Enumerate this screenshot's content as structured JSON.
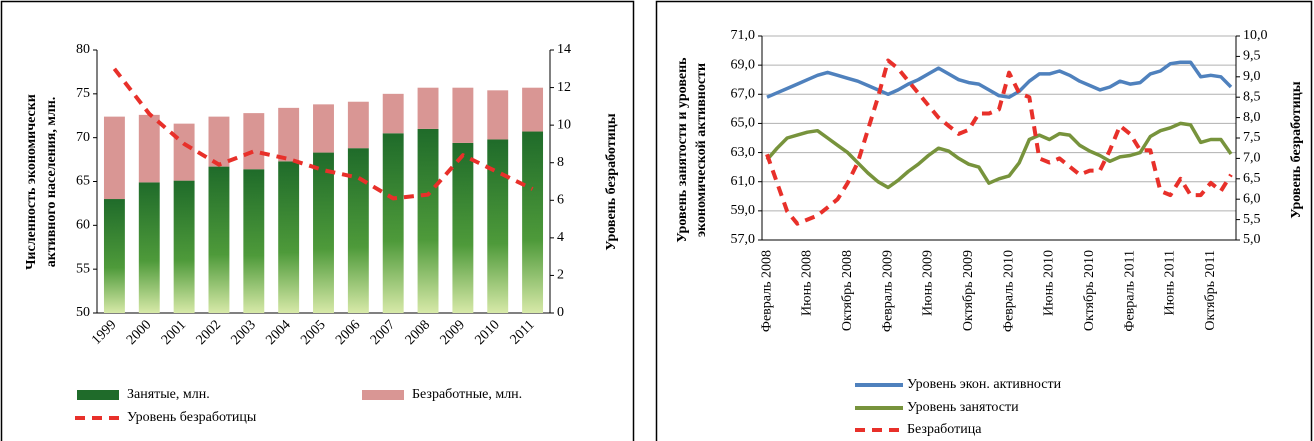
{
  "chart_data": [
    {
      "type": "bar",
      "stacked": true,
      "categories": [
        "1999",
        "2000",
        "2001",
        "2002",
        "2003",
        "2004",
        "2005",
        "2006",
        "2007",
        "2008",
        "2009",
        "2010",
        "2011"
      ],
      "series": [
        {
          "name": "Занятые, млн.",
          "color": "#1f6b2a",
          "values": [
            63.0,
            64.9,
            65.1,
            66.7,
            66.4,
            67.3,
            68.3,
            68.8,
            70.5,
            71.0,
            69.4,
            69.8,
            70.7
          ]
        },
        {
          "name": "Безработные, млн.",
          "color": "#d99694",
          "values": [
            9.4,
            7.7,
            6.5,
            5.7,
            6.4,
            6.1,
            5.5,
            5.3,
            4.5,
            4.7,
            6.3,
            5.6,
            5.0
          ]
        },
        {
          "name": "Уровень безработицы",
          "color": "#e8302a",
          "type": "line",
          "dashed": true,
          "axis": "y2",
          "values": [
            13.0,
            10.6,
            9.0,
            7.9,
            8.6,
            8.2,
            7.6,
            7.2,
            6.1,
            6.3,
            8.4,
            7.5,
            6.6
          ]
        }
      ],
      "ylabel": [
        "Численность экономически",
        "активного населения, млн."
      ],
      "y2label": "Уровень безработицы",
      "ylim": [
        50,
        80
      ],
      "yticks": [
        50,
        55,
        60,
        65,
        70,
        75,
        80
      ],
      "y2lim": [
        0,
        14
      ],
      "y2ticks": [
        0,
        2,
        4,
        6,
        8,
        10,
        12,
        14
      ],
      "grid": false,
      "legend": "bottom"
    },
    {
      "type": "line",
      "categories": [
        "Февраль 2008",
        null,
        null,
        null,
        "Июнь 2008",
        null,
        null,
        null,
        "Октябрь 2008",
        null,
        null,
        null,
        "Февраль 2009",
        null,
        null,
        null,
        "Июнь 2009",
        null,
        null,
        null,
        "Октябрь 2009",
        null,
        null,
        null,
        "Февраль 2010",
        null,
        null,
        null,
        "Июнь 2010",
        null,
        null,
        null,
        "Октябрь 2010",
        null,
        null,
        null,
        "Февраль 2011",
        null,
        null,
        null,
        "Июнь 2011",
        null,
        null,
        null,
        "Октябрь 2011",
        null,
        null
      ],
      "series": [
        {
          "name": "Уровень экон. активности",
          "color": "#4f81bd",
          "values": [
            66.8,
            67.1,
            67.4,
            67.7,
            68.0,
            68.3,
            68.5,
            68.3,
            68.1,
            67.9,
            67.6,
            67.3,
            67.0,
            67.3,
            67.7,
            68.0,
            68.4,
            68.8,
            68.4,
            68.0,
            67.8,
            67.7,
            67.3,
            66.9,
            66.8,
            67.2,
            67.9,
            68.4,
            68.4,
            68.6,
            68.3,
            67.9,
            67.6,
            67.3,
            67.5,
            67.9,
            67.7,
            67.8,
            68.4,
            68.6,
            69.1,
            69.2,
            69.2,
            68.2,
            68.3,
            68.2,
            67.5
          ]
        },
        {
          "name": "Уровень занятости",
          "color": "#77933c",
          "values": [
            62.5,
            63.3,
            64.0,
            64.2,
            64.4,
            64.5,
            64.0,
            63.5,
            63.0,
            62.3,
            61.6,
            61.0,
            60.6,
            61.1,
            61.7,
            62.2,
            62.8,
            63.3,
            63.1,
            62.6,
            62.2,
            62.0,
            60.9,
            61.2,
            61.4,
            62.3,
            63.9,
            64.2,
            63.9,
            64.3,
            64.2,
            63.5,
            63.1,
            62.8,
            62.4,
            62.7,
            62.8,
            63.0,
            64.1,
            64.5,
            64.7,
            65.0,
            64.9,
            63.7,
            63.9,
            63.9,
            62.9
          ]
        },
        {
          "name": "Безработица",
          "color": "#e8302a",
          "dashed": true,
          "axis": "y2",
          "values": [
            7.1,
            6.4,
            5.7,
            5.4,
            5.5,
            5.6,
            5.8,
            6.0,
            6.4,
            6.9,
            7.7,
            8.5,
            9.4,
            9.2,
            8.9,
            8.6,
            8.3,
            8.0,
            7.8,
            7.6,
            7.7,
            8.1,
            8.1,
            8.2,
            9.1,
            8.6,
            8.5,
            7.0,
            6.9,
            7.0,
            6.8,
            6.6,
            6.7,
            6.7,
            7.2,
            7.8,
            7.6,
            7.2,
            7.2,
            6.2,
            6.1,
            6.5,
            6.1,
            6.1,
            6.4,
            6.2,
            6.6
          ]
        }
      ],
      "ylabel": [
        "Уровень  занятости и уровень",
        "экономической активности"
      ],
      "y2label": "Уровень безработицы",
      "ylim": [
        57,
        71
      ],
      "yticks": [
        {
          "value": 57,
          "label": "57,0"
        },
        {
          "value": 59,
          "label": "59,0"
        },
        {
          "value": 61,
          "label": "61,0"
        },
        {
          "value": 63,
          "label": "63,0"
        },
        {
          "value": 65,
          "label": "65,0"
        },
        {
          "value": 67,
          "label": "67,0"
        },
        {
          "value": 69,
          "label": "69,0"
        },
        {
          "value": 71,
          "label": "71,0"
        }
      ],
      "y2lim": [
        5,
        10
      ],
      "y2ticks": [
        {
          "value": 5,
          "label": "5,0"
        },
        {
          "value": 5.5,
          "label": "5,5"
        },
        {
          "value": 6,
          "label": "6,0"
        },
        {
          "value": 6.5,
          "label": "6,5"
        },
        {
          "value": 7,
          "label": "7,0"
        },
        {
          "value": 7.5,
          "label": "7,5"
        },
        {
          "value": 8,
          "label": "8,0"
        },
        {
          "value": 8.5,
          "label": "8,5"
        },
        {
          "value": 9,
          "label": "9,0"
        },
        {
          "value": 9.5,
          "label": "9,5"
        },
        {
          "value": 10,
          "label": "10,0"
        }
      ],
      "grid": true,
      "legend": "bottom"
    }
  ]
}
